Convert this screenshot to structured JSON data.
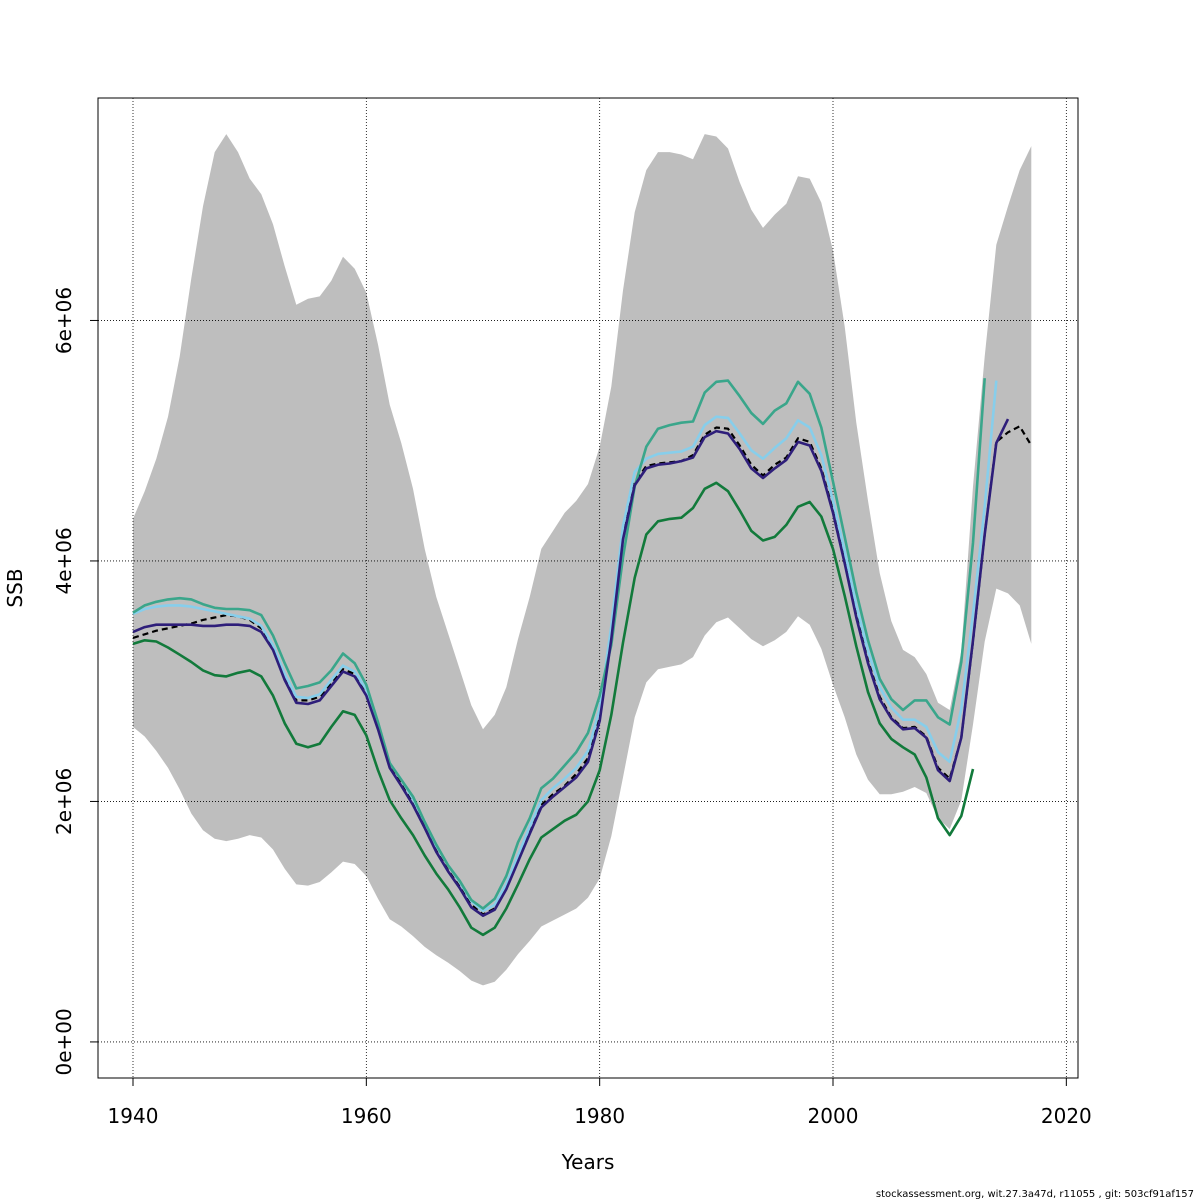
{
  "chart_data": {
    "type": "line",
    "title": "",
    "xlabel": "Years",
    "ylabel": "SSB",
    "xlim": [
      1937,
      2021
    ],
    "ylim": [
      -300000,
      7850000
    ],
    "x_ticks": [
      1940,
      1960,
      1980,
      2000,
      2020
    ],
    "x_tick_labels": [
      "1940",
      "1960",
      "1980",
      "2000",
      "2020"
    ],
    "y_ticks": [
      0,
      2000000,
      4000000,
      6000000
    ],
    "y_tick_labels": [
      "0e+00",
      "2e+06",
      "4e+06",
      "6e+06"
    ],
    "grid": true,
    "footer": "stockassessment.org, wit.27.3a47d, r11055 , git: 503cf91af157",
    "band": {
      "x": [
        1940,
        1941,
        1942,
        1943,
        1944,
        1945,
        1946,
        1947,
        1948,
        1949,
        1950,
        1951,
        1952,
        1953,
        1954,
        1955,
        1956,
        1957,
        1958,
        1959,
        1960,
        1961,
        1962,
        1963,
        1964,
        1965,
        1966,
        1967,
        1968,
        1969,
        1970,
        1971,
        1972,
        1973,
        1974,
        1975,
        1976,
        1977,
        1978,
        1979,
        1980,
        1981,
        1982,
        1983,
        1984,
        1985,
        1986,
        1987,
        1988,
        1989,
        1990,
        1991,
        1992,
        1993,
        1994,
        1995,
        1996,
        1997,
        1998,
        1999,
        2000,
        2001,
        2002,
        2003,
        2004,
        2005,
        2006,
        2007,
        2008,
        2009,
        2010,
        2011,
        2012,
        2013,
        2014,
        2015,
        2016,
        2017
      ],
      "upper": [
        4350000,
        4580000,
        4850000,
        5200000,
        5700000,
        6350000,
        6950000,
        7400000,
        7550000,
        7400000,
        7180000,
        7050000,
        6800000,
        6450000,
        6130000,
        6180000,
        6200000,
        6330000,
        6530000,
        6430000,
        6230000,
        5800000,
        5300000,
        4980000,
        4600000,
        4100000,
        3700000,
        3400000,
        3100000,
        2800000,
        2600000,
        2720000,
        2950000,
        3350000,
        3700000,
        4100000,
        4250000,
        4400000,
        4500000,
        4640000,
        4950000,
        5450000,
        6250000,
        6900000,
        7250000,
        7400000,
        7400000,
        7380000,
        7340000,
        7550000,
        7530000,
        7430000,
        7150000,
        6920000,
        6770000,
        6880000,
        6970000,
        7200000,
        7180000,
        6980000,
        6580000,
        5950000,
        5150000,
        4500000,
        3900000,
        3500000,
        3260000,
        3200000,
        3060000,
        2820000,
        2760000,
        3250000,
        4620000,
        5700000,
        6630000,
        6950000,
        7250000,
        7450000
      ],
      "lower": [
        2620000,
        2540000,
        2420000,
        2280000,
        2100000,
        1900000,
        1760000,
        1690000,
        1670000,
        1690000,
        1720000,
        1700000,
        1600000,
        1440000,
        1310000,
        1300000,
        1330000,
        1410000,
        1500000,
        1480000,
        1380000,
        1190000,
        1020000,
        960000,
        880000,
        790000,
        720000,
        660000,
        590000,
        510000,
        470000,
        500000,
        600000,
        730000,
        840000,
        960000,
        1010000,
        1060000,
        1110000,
        1200000,
        1360000,
        1710000,
        2200000,
        2700000,
        2990000,
        3100000,
        3120000,
        3140000,
        3200000,
        3380000,
        3490000,
        3530000,
        3440000,
        3350000,
        3290000,
        3340000,
        3410000,
        3540000,
        3470000,
        3270000,
        2970000,
        2700000,
        2390000,
        2180000,
        2060000,
        2060000,
        2080000,
        2120000,
        2070000,
        1860000,
        1770000,
        2010000,
        2640000,
        3330000,
        3770000,
        3730000,
        3630000,
        3310000
      ]
    },
    "series": [
      {
        "color": "#000000",
        "dashed": true,
        "x": [
          1940,
          1941,
          1942,
          1943,
          1944,
          1945,
          1946,
          1947,
          1948,
          1949,
          1950,
          1951,
          1952,
          1953,
          1954,
          1955,
          1956,
          1957,
          1958,
          1959,
          1960,
          1961,
          1962,
          1963,
          1964,
          1965,
          1966,
          1967,
          1968,
          1969,
          1970,
          1971,
          1972,
          1973,
          1974,
          1975,
          1976,
          1977,
          1978,
          1979,
          1980,
          1981,
          1982,
          1983,
          1984,
          1985,
          1986,
          1987,
          1988,
          1989,
          1990,
          1991,
          1992,
          1993,
          1994,
          1995,
          1996,
          1997,
          1998,
          1999,
          2000,
          2001,
          2002,
          2003,
          2004,
          2005,
          2006,
          2007,
          2008,
          2009,
          2010,
          2011,
          2012,
          2013,
          2014,
          2015,
          2016,
          2017
        ],
        "y": [
          3360000,
          3390000,
          3420000,
          3440000,
          3460000,
          3480000,
          3510000,
          3530000,
          3550000,
          3540000,
          3510000,
          3440000,
          3280000,
          3020000,
          2840000,
          2840000,
          2870000,
          2980000,
          3100000,
          3060000,
          2920000,
          2630000,
          2310000,
          2160000,
          2000000,
          1800000,
          1590000,
          1430000,
          1290000,
          1140000,
          1060000,
          1110000,
          1280000,
          1510000,
          1750000,
          1970000,
          2060000,
          2130000,
          2230000,
          2360000,
          2700000,
          3380000,
          4200000,
          4650000,
          4790000,
          4810000,
          4820000,
          4830000,
          4880000,
          5050000,
          5110000,
          5100000,
          4960000,
          4800000,
          4710000,
          4800000,
          4860000,
          5020000,
          4990000,
          4770000,
          4420000,
          4000000,
          3550000,
          3170000,
          2870000,
          2700000,
          2610000,
          2620000,
          2540000,
          2280000,
          2190000,
          2530000,
          3330000,
          4220000,
          4990000,
          5070000,
          5120000,
          4960000
        ]
      },
      {
        "color": "#2e1e7a",
        "dashed": false,
        "x": [
          1940,
          1941,
          1942,
          1943,
          1944,
          1945,
          1946,
          1947,
          1948,
          1949,
          1950,
          1951,
          1952,
          1953,
          1954,
          1955,
          1956,
          1957,
          1958,
          1959,
          1960,
          1961,
          1962,
          1963,
          1964,
          1965,
          1966,
          1967,
          1968,
          1969,
          1970,
          1971,
          1972,
          1973,
          1974,
          1975,
          1976,
          1977,
          1978,
          1979,
          1980,
          1981,
          1982,
          1983,
          1984,
          1985,
          1986,
          1987,
          1988,
          1989,
          1990,
          1991,
          1992,
          1993,
          1994,
          1995,
          1996,
          1997,
          1998,
          1999,
          2000,
          2001,
          2002,
          2003,
          2004,
          2005,
          2006,
          2007,
          2008,
          2009,
          2010,
          2011,
          2012,
          2013,
          2014,
          2015
        ],
        "y": [
          3410000,
          3450000,
          3470000,
          3470000,
          3470000,
          3470000,
          3460000,
          3460000,
          3470000,
          3470000,
          3460000,
          3410000,
          3260000,
          3010000,
          2820000,
          2810000,
          2840000,
          2960000,
          3080000,
          3040000,
          2880000,
          2600000,
          2280000,
          2130000,
          1970000,
          1780000,
          1580000,
          1420000,
          1280000,
          1120000,
          1050000,
          1100000,
          1270000,
          1500000,
          1730000,
          1950000,
          2040000,
          2120000,
          2200000,
          2330000,
          2670000,
          3350000,
          4180000,
          4630000,
          4770000,
          4800000,
          4810000,
          4830000,
          4860000,
          5030000,
          5080000,
          5060000,
          4930000,
          4770000,
          4690000,
          4770000,
          4840000,
          4990000,
          4960000,
          4750000,
          4400000,
          3980000,
          3530000,
          3150000,
          2850000,
          2690000,
          2600000,
          2610000,
          2530000,
          2260000,
          2170000,
          2530000,
          3340000,
          4220000,
          4980000,
          5180000
        ]
      },
      {
        "color": "#87ceeb",
        "dashed": false,
        "x": [
          1940,
          1941,
          1942,
          1943,
          1944,
          1945,
          1946,
          1947,
          1948,
          1949,
          1950,
          1951,
          1952,
          1953,
          1954,
          1955,
          1956,
          1957,
          1958,
          1959,
          1960,
          1961,
          1962,
          1963,
          1964,
          1965,
          1966,
          1967,
          1968,
          1969,
          1970,
          1971,
          1972,
          1973,
          1974,
          1975,
          1976,
          1977,
          1978,
          1979,
          1980,
          1981,
          1982,
          1983,
          1984,
          1985,
          1986,
          1987,
          1988,
          1989,
          1990,
          1991,
          1992,
          1993,
          1994,
          1995,
          1996,
          1997,
          1998,
          1999,
          2000,
          2001,
          2002,
          2003,
          2004,
          2005,
          2006,
          2007,
          2008,
          2009,
          2010,
          2011,
          2012,
          2013,
          2014
        ],
        "y": [
          3560000,
          3600000,
          3620000,
          3630000,
          3630000,
          3620000,
          3600000,
          3580000,
          3560000,
          3540000,
          3520000,
          3460000,
          3300000,
          3060000,
          2870000,
          2860000,
          2890000,
          3010000,
          3130000,
          3080000,
          2930000,
          2650000,
          2320000,
          2180000,
          2020000,
          1830000,
          1630000,
          1470000,
          1330000,
          1170000,
          1090000,
          1140000,
          1310000,
          1550000,
          1790000,
          2010000,
          2110000,
          2190000,
          2280000,
          2420000,
          2770000,
          3460000,
          4290000,
          4740000,
          4850000,
          4890000,
          4900000,
          4910000,
          4950000,
          5130000,
          5200000,
          5190000,
          5060000,
          4920000,
          4850000,
          4940000,
          5020000,
          5170000,
          5110000,
          4880000,
          4500000,
          4080000,
          3630000,
          3250000,
          2950000,
          2780000,
          2680000,
          2680000,
          2620000,
          2410000,
          2330000,
          2770000,
          3560000,
          4450000,
          5500000
        ]
      },
      {
        "color": "#3aa68b",
        "dashed": false,
        "x": [
          1940,
          1941,
          1942,
          1943,
          1944,
          1945,
          1946,
          1947,
          1948,
          1949,
          1950,
          1951,
          1952,
          1953,
          1954,
          1955,
          1956,
          1957,
          1958,
          1959,
          1960,
          1961,
          1962,
          1963,
          1964,
          1965,
          1966,
          1967,
          1968,
          1969,
          1970,
          1971,
          1972,
          1973,
          1974,
          1975,
          1976,
          1977,
          1978,
          1979,
          1980,
          1981,
          1982,
          1983,
          1984,
          1985,
          1986,
          1987,
          1988,
          1989,
          1990,
          1991,
          1992,
          1993,
          1994,
          1995,
          1996,
          1997,
          1998,
          1999,
          2000,
          2001,
          2002,
          2003,
          2004,
          2005,
          2006,
          2007,
          2008,
          2009,
          2010,
          2011,
          2012,
          2013
        ],
        "y": [
          3570000,
          3630000,
          3660000,
          3680000,
          3690000,
          3680000,
          3640000,
          3610000,
          3600000,
          3600000,
          3590000,
          3550000,
          3380000,
          3150000,
          2940000,
          2960000,
          2990000,
          3090000,
          3230000,
          3150000,
          2970000,
          2660000,
          2320000,
          2180000,
          2040000,
          1830000,
          1640000,
          1470000,
          1340000,
          1180000,
          1110000,
          1190000,
          1380000,
          1660000,
          1860000,
          2110000,
          2190000,
          2300000,
          2410000,
          2570000,
          2880000,
          3300000,
          4030000,
          4620000,
          4950000,
          5100000,
          5130000,
          5150000,
          5160000,
          5400000,
          5490000,
          5500000,
          5370000,
          5230000,
          5140000,
          5250000,
          5310000,
          5490000,
          5390000,
          5110000,
          4660000,
          4200000,
          3740000,
          3340000,
          3020000,
          2850000,
          2760000,
          2840000,
          2840000,
          2700000,
          2640000,
          3160000,
          4150000,
          5520000
        ]
      },
      {
        "color": "#127a3b",
        "dashed": false,
        "x": [
          1940,
          1941,
          1942,
          1943,
          1944,
          1945,
          1946,
          1947,
          1948,
          1949,
          1950,
          1951,
          1952,
          1953,
          1954,
          1955,
          1956,
          1957,
          1958,
          1959,
          1960,
          1961,
          1962,
          1963,
          1964,
          1965,
          1966,
          1967,
          1968,
          1969,
          1970,
          1971,
          1972,
          1973,
          1974,
          1975,
          1976,
          1977,
          1978,
          1979,
          1980,
          1981,
          1982,
          1983,
          1984,
          1985,
          1986,
          1987,
          1988,
          1989,
          1990,
          1991,
          1992,
          1993,
          1994,
          1995,
          1996,
          1997,
          1998,
          1999,
          2000,
          2001,
          2002,
          2003,
          2004,
          2005,
          2006,
          2007,
          2008,
          2009,
          2010,
          2011,
          2012
        ],
        "y": [
          3310000,
          3340000,
          3330000,
          3280000,
          3220000,
          3160000,
          3090000,
          3050000,
          3040000,
          3070000,
          3090000,
          3040000,
          2880000,
          2650000,
          2480000,
          2450000,
          2480000,
          2620000,
          2750000,
          2720000,
          2550000,
          2260000,
          2010000,
          1860000,
          1720000,
          1550000,
          1400000,
          1270000,
          1120000,
          950000,
          890000,
          950000,
          1110000,
          1310000,
          1520000,
          1700000,
          1770000,
          1840000,
          1890000,
          2000000,
          2260000,
          2720000,
          3320000,
          3860000,
          4220000,
          4330000,
          4350000,
          4360000,
          4440000,
          4600000,
          4650000,
          4580000,
          4420000,
          4250000,
          4170000,
          4200000,
          4300000,
          4450000,
          4490000,
          4370000,
          4100000,
          3710000,
          3290000,
          2910000,
          2650000,
          2520000,
          2450000,
          2390000,
          2200000,
          1860000,
          1720000,
          1880000,
          2270000
        ]
      }
    ]
  }
}
